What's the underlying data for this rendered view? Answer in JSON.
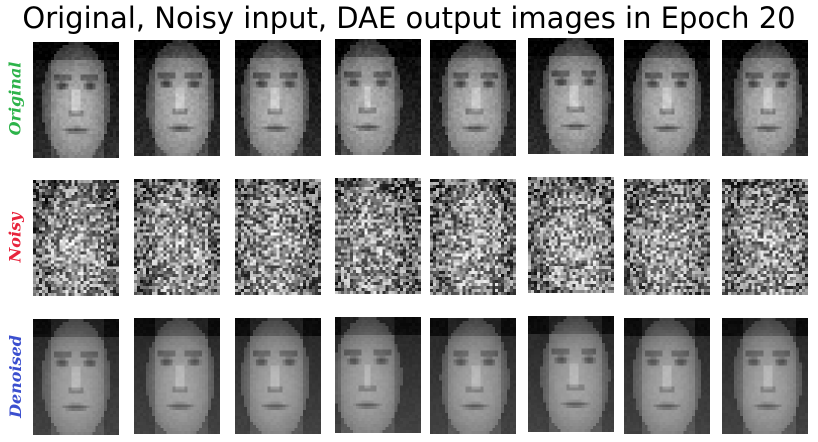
{
  "figure": {
    "title": "Original, Noisy input, DAE output images in Epoch 20"
  },
  "rows": [
    {
      "key": "original",
      "label": "Original",
      "color": "#2db34a",
      "tile_count": 8
    },
    {
      "key": "noisy",
      "label": "Noisy",
      "color": "#e8243c",
      "tile_count": 8
    },
    {
      "key": "denoised",
      "label": "Denoised",
      "color": "#3b4fcf",
      "tile_count": 8
    }
  ]
}
